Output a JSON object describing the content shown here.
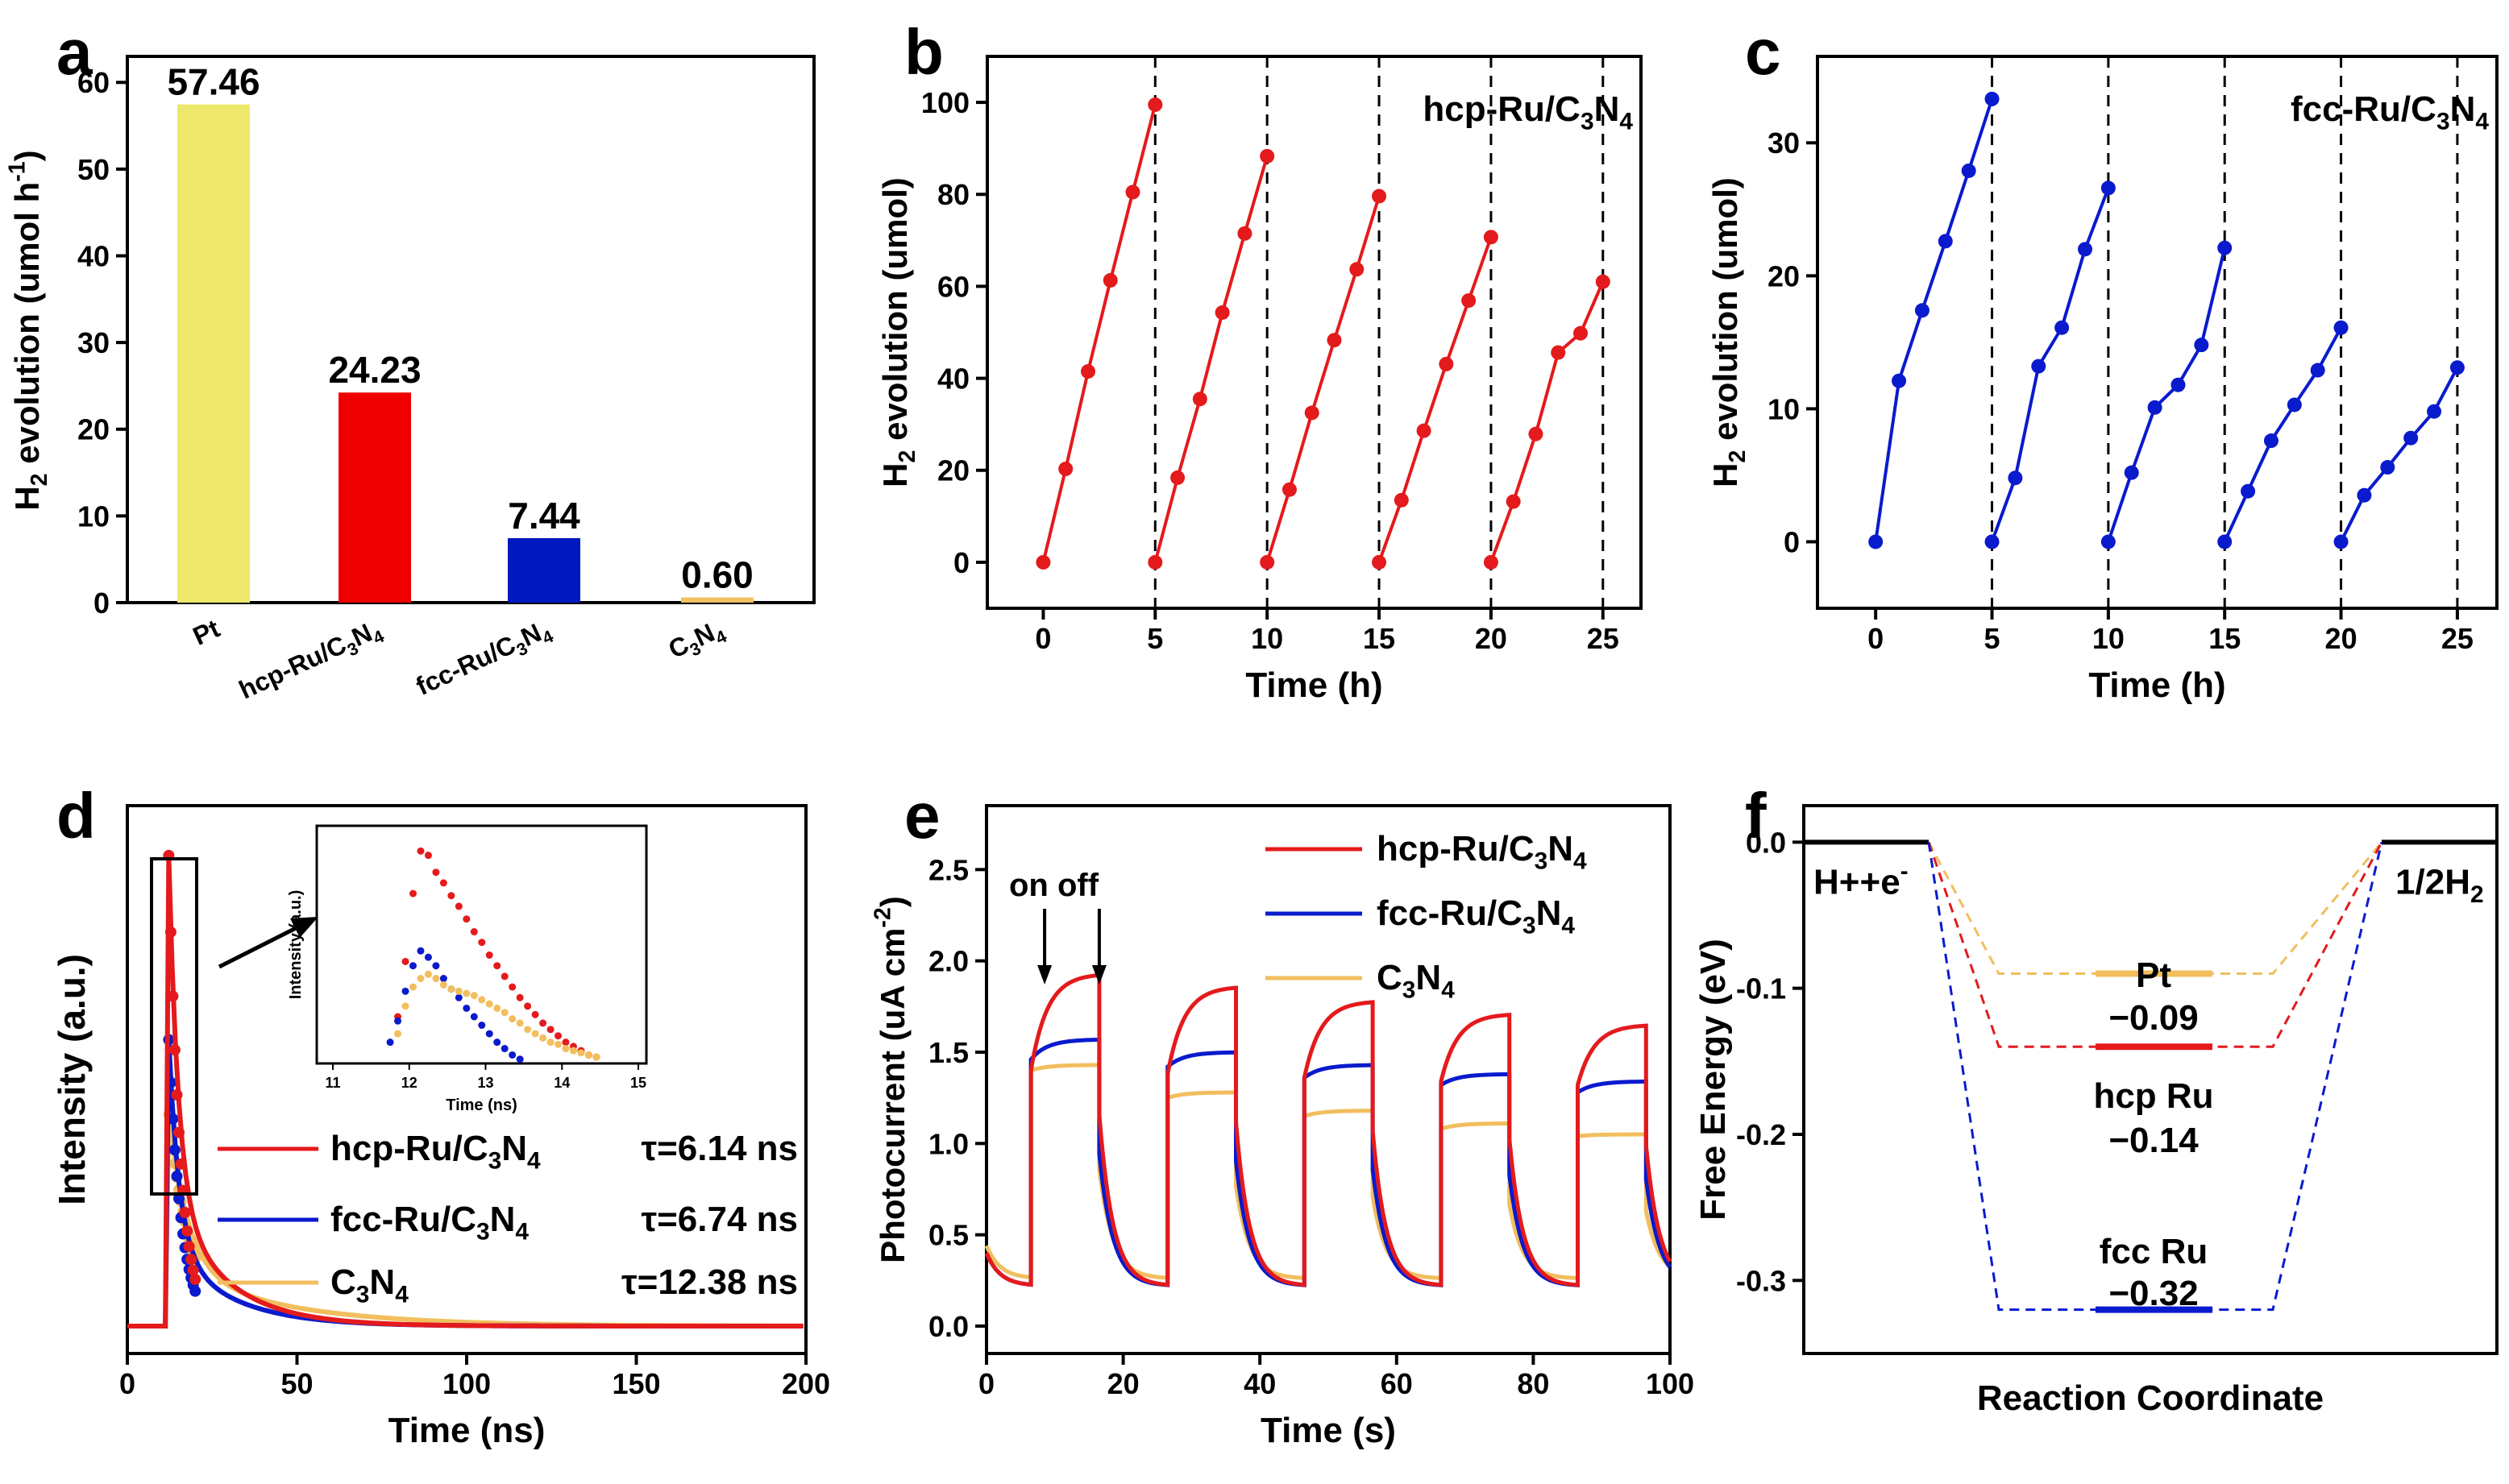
{
  "chart_data": [
    {
      "id": "a",
      "panel_label": "a",
      "type": "bar",
      "ylabel": "H2 evolution (umol h-1)",
      "ylim": [
        0,
        63
      ],
      "yticks": [
        0,
        10,
        20,
        30,
        40,
        50,
        60
      ],
      "categories": [
        "Pt",
        "hcp-Ru/C3N4",
        "fcc-Ru/C3N4",
        "C3N4"
      ],
      "values": [
        57.46,
        24.23,
        7.44,
        0.6
      ],
      "value_labels": [
        "57.46",
        "24.23",
        "7.44",
        "0.60"
      ],
      "colors": [
        "#EDE86C",
        "#EE0000",
        "#0019BE",
        "#F0C060"
      ]
    },
    {
      "id": "b",
      "panel_label": "b",
      "type": "line",
      "xlabel": "Time (h)",
      "ylabel": "H2 evolution (umol)",
      "xlim": [
        -2.5,
        26.7
      ],
      "ylim": [
        -10,
        110
      ],
      "xticks": [
        0,
        5,
        10,
        15,
        20,
        25
      ],
      "yticks": [
        0,
        20,
        40,
        60,
        80,
        100
      ],
      "legend_text": "hcp-Ru/C3N4",
      "color": "#E41A1C",
      "dividers": [
        5,
        10,
        15,
        20,
        25
      ],
      "series": [
        {
          "name": "cycle 1",
          "x": [
            0,
            1,
            2,
            3,
            4,
            5
          ],
          "y": [
            0,
            20.3,
            41.5,
            61.3,
            80.5,
            99.5
          ]
        },
        {
          "name": "cycle 2",
          "x": [
            5,
            6,
            7,
            8,
            9,
            10
          ],
          "y": [
            0,
            18.4,
            35.5,
            54.3,
            71.5,
            88.3
          ]
        },
        {
          "name": "cycle 3",
          "x": [
            10,
            11,
            12,
            13,
            14,
            15
          ],
          "y": [
            0,
            15.8,
            32.5,
            48.3,
            63.7,
            79.6
          ]
        },
        {
          "name": "cycle 4",
          "x": [
            15,
            16,
            17,
            18,
            19,
            20
          ],
          "y": [
            0,
            13.5,
            28.6,
            43.1,
            56.9,
            70.7
          ]
        },
        {
          "name": "cycle 5",
          "x": [
            20,
            21,
            22,
            23,
            24,
            25
          ],
          "y": [
            0,
            13.2,
            27.9,
            45.6,
            49.8,
            61.0
          ]
        }
      ]
    },
    {
      "id": "c",
      "panel_label": "c",
      "type": "line",
      "xlabel": "Time (h)",
      "ylabel": "H2 evolution (umol)",
      "xlim": [
        -2.5,
        26.7
      ],
      "ylim": [
        -5,
        36.5
      ],
      "xticks": [
        0,
        5,
        10,
        15,
        20,
        25
      ],
      "yticks": [
        0,
        10,
        20,
        30
      ],
      "legend_text": "fcc-Ru/C3N4",
      "color": "#0A1ACD",
      "dividers": [
        5,
        10,
        15,
        20,
        25
      ],
      "series": [
        {
          "name": "cycle 1",
          "x": [
            0,
            1,
            2,
            3,
            4,
            5
          ],
          "y": [
            0,
            12.1,
            17.4,
            22.6,
            27.9,
            33.3
          ]
        },
        {
          "name": "cycle 2",
          "x": [
            5,
            6,
            7,
            8,
            9,
            10
          ],
          "y": [
            0,
            4.8,
            13.2,
            16.1,
            22.0,
            26.6
          ]
        },
        {
          "name": "cycle 3",
          "x": [
            10,
            11,
            12,
            13,
            14,
            15
          ],
          "y": [
            0,
            5.2,
            10.1,
            11.8,
            14.8,
            22.1
          ]
        },
        {
          "name": "cycle 4",
          "x": [
            15,
            16,
            17,
            18,
            19,
            20
          ],
          "y": [
            0,
            3.8,
            7.6,
            10.3,
            12.9,
            16.1
          ]
        },
        {
          "name": "cycle 5",
          "x": [
            20,
            21,
            22,
            23,
            24,
            25
          ],
          "y": [
            0,
            3.5,
            5.6,
            7.8,
            9.8,
            13.1
          ]
        }
      ]
    },
    {
      "id": "d",
      "panel_label": "d",
      "type": "line",
      "xlabel": "Time (ns)",
      "ylabel": "Intensity (a.u.)",
      "xlim": [
        0,
        200
      ],
      "ylim": [
        0,
        1.1
      ],
      "xticks": [
        0,
        50,
        100,
        150,
        200
      ],
      "series": [
        {
          "name": "hcp-Ru/C3N4",
          "tau": "τ=6.14 ns",
          "color": "#E41A1C",
          "peak": 1.0
        },
        {
          "name": "fcc-Ru/C3N4",
          "tau": "τ=6.74 ns",
          "color": "#0A1ACD",
          "peak": 0.63
        },
        {
          "name": "C3N4",
          "tau": "τ=12.38 ns",
          "color": "#F2BE5E",
          "peak": 0.48
        }
      ],
      "inset": {
        "xlabel": "Time (ns)",
        "ylabel": "Intensity (a.u.)",
        "xlim": [
          11,
          15
        ],
        "xticks": [
          11,
          12,
          13,
          14,
          15
        ],
        "ylim": [
          0,
          1.1
        ],
        "series": [
          {
            "name": "hcp-Ru/C3N4",
            "x": [
              11.85,
              11.95,
              12.05,
              12.15,
              12.25,
              12.35,
              12.45,
              12.55,
              12.65,
              12.75,
              12.85,
              12.95,
              13.05,
              13.15,
              13.25,
              13.35,
              13.45,
              13.55,
              13.65,
              13.75,
              13.85,
              13.95,
              14.05,
              14.15,
              14.25,
              14.35,
              14.45
            ],
            "y": [
              0.22,
              0.48,
              0.8,
              1.0,
              0.98,
              0.9,
              0.85,
              0.79,
              0.74,
              0.68,
              0.62,
              0.57,
              0.51,
              0.46,
              0.41,
              0.36,
              0.31,
              0.27,
              0.23,
              0.19,
              0.16,
              0.13,
              0.1,
              0.08,
              0.06,
              0.04,
              0.03
            ]
          },
          {
            "name": "fcc-Ru/C3N4",
            "x": [
              11.75,
              11.85,
              11.95,
              12.05,
              12.15,
              12.25,
              12.35,
              12.45,
              12.55,
              12.65,
              12.75,
              12.85,
              12.95,
              13.05,
              13.15,
              13.25,
              13.35,
              13.45
            ],
            "y": [
              0.1,
              0.2,
              0.34,
              0.46,
              0.53,
              0.5,
              0.46,
              0.4,
              0.35,
              0.31,
              0.26,
              0.22,
              0.18,
              0.14,
              0.1,
              0.07,
              0.04,
              0.02
            ]
          },
          {
            "name": "C3N4",
            "x": [
              11.85,
              11.95,
              12.05,
              12.15,
              12.25,
              12.35,
              12.45,
              12.55,
              12.65,
              12.75,
              12.85,
              12.95,
              13.05,
              13.15,
              13.25,
              13.35,
              13.45,
              13.55,
              13.65,
              13.75,
              13.85,
              13.95,
              14.05,
              14.15,
              14.25,
              14.35,
              14.45
            ],
            "y": [
              0.14,
              0.27,
              0.36,
              0.4,
              0.42,
              0.4,
              0.37,
              0.35,
              0.34,
              0.33,
              0.32,
              0.3,
              0.28,
              0.26,
              0.24,
              0.21,
              0.19,
              0.16,
              0.14,
              0.12,
              0.1,
              0.09,
              0.07,
              0.06,
              0.05,
              0.04,
              0.03
            ]
          }
        ]
      }
    },
    {
      "id": "e",
      "panel_label": "e",
      "type": "line",
      "xlabel": "Time (s)",
      "ylabel": "Photocurrent (uA cm-2)",
      "xlim": [
        0,
        100
      ],
      "ylim": [
        -0.15,
        2.85
      ],
      "xticks": [
        0,
        20,
        40,
        60,
        80,
        100
      ],
      "yticks": [
        0.0,
        0.5,
        1.0,
        1.5,
        2.0,
        2.5
      ],
      "on_off_text": "on off",
      "arrows_x": [
        8.5,
        16.5
      ],
      "on_periods": [
        [
          6.5,
          16.5
        ],
        [
          26.5,
          36.5
        ],
        [
          46.5,
          56.5
        ],
        [
          66.5,
          76.5
        ],
        [
          86.5,
          96.5
        ]
      ],
      "series": [
        {
          "name": "hcp-Ru/C3N4",
          "color": "#E41A1C",
          "base": 0.22,
          "jump": [
            1.4,
            1.38,
            1.36,
            1.34,
            1.32
          ],
          "top": [
            1.93,
            1.86,
            1.78,
            1.71,
            1.65
          ]
        },
        {
          "name": "fcc-Ru/C3N4",
          "color": "#0A1ACD",
          "base": 0.22,
          "jump": [
            1.46,
            1.42,
            1.36,
            1.32,
            1.28
          ],
          "top": [
            1.57,
            1.5,
            1.43,
            1.38,
            1.34
          ]
        },
        {
          "name": "C3N4",
          "color": "#F2BE5E",
          "base": 0.26,
          "jump": [
            1.4,
            1.25,
            1.15,
            1.08,
            1.04
          ],
          "top": [
            1.43,
            1.28,
            1.18,
            1.11,
            1.05
          ]
        }
      ]
    },
    {
      "id": "f",
      "panel_label": "f",
      "type": "line",
      "xlabel": "Reaction Coordinate",
      "ylabel": "Free Energy (eV)",
      "ylim": [
        -0.35,
        0.025
      ],
      "yticks": [
        0.0,
        -0.1,
        -0.2,
        -0.3
      ],
      "ytick_labels": [
        "0.0",
        "-0.1",
        "-0.2",
        "-0.3"
      ],
      "start_label": "H+ + e-",
      "end_label": "1/2H2",
      "series": [
        {
          "name": "Pt",
          "value": -0.09,
          "label": "Pt",
          "value_text": "−0.09",
          "color": "#F2BE5E"
        },
        {
          "name": "hcp Ru",
          "value": -0.14,
          "label": "hcp Ru",
          "value_text": "−0.14",
          "color": "#E41A1C"
        },
        {
          "name": "fcc Ru",
          "value": -0.32,
          "label": "fcc Ru",
          "value_text": "−0.32",
          "color": "#0A1ACD"
        }
      ]
    }
  ]
}
